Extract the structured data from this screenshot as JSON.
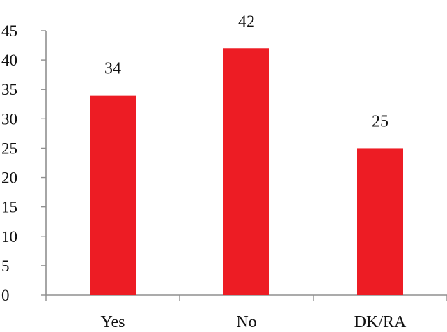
{
  "chart_data": {
    "type": "bar",
    "categories": [
      "Yes",
      "No",
      "DK/RA"
    ],
    "values": [
      34,
      42,
      25
    ],
    "data_labels": [
      "34",
      "42",
      "25"
    ],
    "y_ticks": [
      "0",
      "5",
      "10",
      "15",
      "20",
      "25",
      "30",
      "35",
      "40",
      "45"
    ],
    "ylim": [
      0,
      45
    ],
    "grid": false,
    "legend": "none",
    "bar_color": "#ed1c24"
  }
}
